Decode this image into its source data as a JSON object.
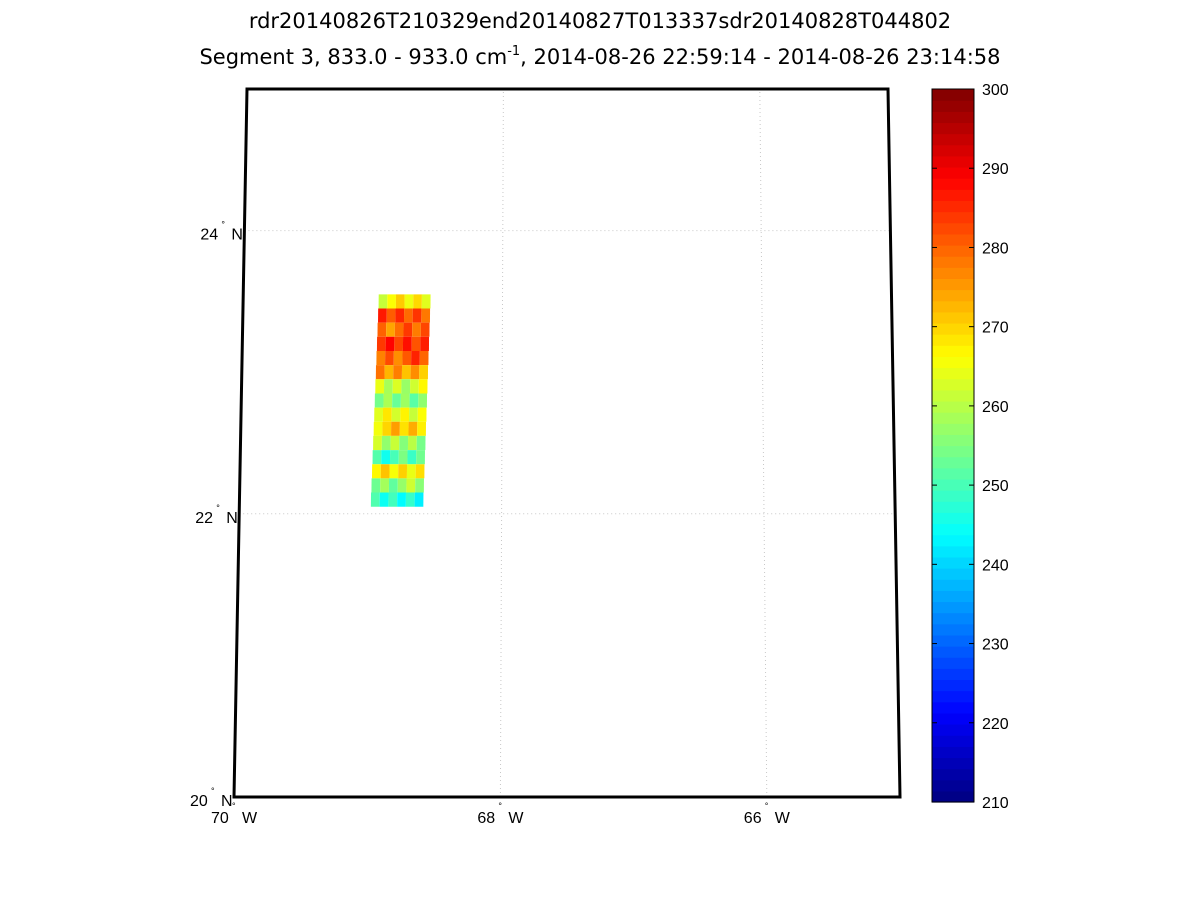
{
  "chart_data": {
    "type": "heatmap",
    "title": "rdr20140826T210329end20140827T013337sdr20140828T044802",
    "subtitle": {
      "prefix": "Segment 3, 833.0 - 933.0 cm",
      "exponent": "-1",
      "suffix": ", 2014-08-26 22:59:14 - 2014-08-26 23:14:58"
    },
    "xlabel": "",
    "ylabel": "",
    "map": {
      "projection": "conic",
      "lon_range_deg_west": [
        70,
        65
      ],
      "lat_range_deg_north": [
        20,
        25
      ],
      "grid": true
    },
    "x_ticks": [
      {
        "value": 70,
        "label": "70",
        "hemi": "W"
      },
      {
        "value": 68,
        "label": "68",
        "hemi": "W"
      },
      {
        "value": 66,
        "label": "66",
        "hemi": "W"
      }
    ],
    "y_ticks": [
      {
        "value": 20,
        "label": "20",
        "hemi": "N"
      },
      {
        "value": 22,
        "label": "22",
        "hemi": "N"
      },
      {
        "value": 24,
        "label": "24",
        "hemi": "N"
      }
    ],
    "colorbar": {
      "colormap": "jet",
      "range": [
        210,
        300
      ],
      "ticks": [
        300,
        290,
        280,
        270,
        260,
        250,
        240,
        230,
        220,
        210
      ],
      "levels": 64
    },
    "swath": {
      "lon_range_deg_west": [
        69.0,
        68.6
      ],
      "lat_range_deg_north": [
        22.05,
        23.55
      ],
      "value_range": [
        228,
        288
      ],
      "rows_from_top": [
        {
          "lat": 23.5,
          "value": 266
        },
        {
          "lat": 23.4,
          "value": 283
        },
        {
          "lat": 23.3,
          "value": 279
        },
        {
          "lat": 23.2,
          "value": 285
        },
        {
          "lat": 23.1,
          "value": 281
        },
        {
          "lat": 23.0,
          "value": 274
        },
        {
          "lat": 22.9,
          "value": 262
        },
        {
          "lat": 22.8,
          "value": 254
        },
        {
          "lat": 22.7,
          "value": 266
        },
        {
          "lat": 22.6,
          "value": 270
        },
        {
          "lat": 22.5,
          "value": 259
        },
        {
          "lat": 22.4,
          "value": 250
        },
        {
          "lat": 22.3,
          "value": 268
        },
        {
          "lat": 22.2,
          "value": 257
        },
        {
          "lat": 22.1,
          "value": 246
        }
      ],
      "colors": {
        "missing": "#ffffff"
      }
    }
  }
}
